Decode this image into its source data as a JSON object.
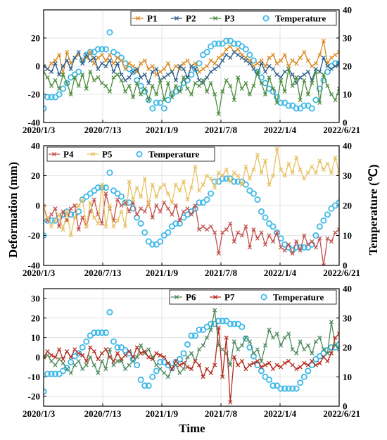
{
  "figure": {
    "ylabel_left": "Deformation (mm)",
    "ylabel_right": "Temperature (℃)",
    "xlabel": "Time"
  },
  "chart_data": [
    {
      "type": "line",
      "x_tick_labels": [
        "2020/1/3",
        "2020/7/13",
        "2021/1/9",
        "2021/7/8",
        "2022/1/4",
        "2022/6/21"
      ],
      "x_range": [
        "2020/1/3",
        "2022/6/21"
      ],
      "ylim": [
        -40,
        40
      ],
      "yticks": [
        -40,
        -20,
        0,
        20
      ],
      "y2lim": [
        0,
        40
      ],
      "y2ticks": [
        0,
        10,
        20,
        30,
        40
      ],
      "grid": true,
      "legend_position": "top-right",
      "legend": [
        "P1",
        "P2",
        "P3",
        "Temperature"
      ],
      "series": [
        {
          "name": "P1",
          "color": "#d9891e",
          "marker": "x",
          "values": [
            0,
            -2,
            2,
            4,
            8,
            -6,
            10,
            2,
            6,
            8,
            4,
            6,
            10,
            2,
            6,
            8,
            4,
            8,
            2,
            6,
            4,
            -2,
            2,
            0,
            -4,
            2,
            4,
            -2,
            0,
            -6,
            -4,
            -2,
            2,
            -4,
            0,
            -2,
            2,
            4,
            0,
            2,
            -4,
            -2,
            0,
            4,
            2,
            6,
            8,
            12,
            14,
            10,
            12,
            8,
            6,
            4,
            0,
            2,
            4,
            0,
            6,
            8,
            2,
            4,
            8,
            0,
            4,
            2,
            6,
            10,
            4,
            0,
            2,
            8,
            18,
            2,
            6,
            8,
            10
          ]
        },
        {
          "name": "P2",
          "color": "#2e5e8a",
          "marker": "x",
          "values": [
            0,
            -2,
            -4,
            2,
            -6,
            0,
            4,
            -2,
            6,
            10,
            2,
            8,
            4,
            6,
            -2,
            2,
            0,
            4,
            -4,
            2,
            -6,
            -10,
            -8,
            -4,
            -2,
            -8,
            -6,
            -12,
            -4,
            -2,
            -10,
            -8,
            -6,
            -4,
            -10,
            0,
            -2,
            -8,
            0,
            -2,
            -10,
            -12,
            -8,
            -4,
            -2,
            0,
            4,
            8,
            6,
            10,
            8,
            6,
            4,
            2,
            -2,
            -6,
            2,
            -4,
            0,
            -2,
            -6,
            -8,
            -4,
            -2,
            -6,
            -12,
            -8,
            -6,
            -4,
            -10,
            -2,
            -4,
            6,
            0,
            -2,
            0,
            2
          ]
        },
        {
          "name": "P3",
          "color": "#4c8c3c",
          "marker": "x",
          "values": [
            -4,
            -8,
            -14,
            -10,
            -16,
            -6,
            -12,
            -20,
            -8,
            -14,
            -6,
            -16,
            -4,
            -10,
            -8,
            -12,
            -14,
            -18,
            -8,
            -6,
            -10,
            -18,
            -14,
            -22,
            -12,
            -20,
            -16,
            -24,
            -14,
            -20,
            -10,
            -24,
            -12,
            -22,
            -14,
            -18,
            -8,
            -16,
            -20,
            -12,
            -14,
            -10,
            -18,
            -12,
            -20,
            -34,
            -18,
            -10,
            -14,
            -24,
            -8,
            -16,
            -12,
            -20,
            -14,
            -4,
            -12,
            -20,
            -8,
            -16,
            -26,
            -10,
            -18,
            -2,
            -14,
            -8,
            -24,
            -10,
            -20,
            -12,
            -4,
            -26,
            -6,
            -14,
            -20,
            -24,
            -16
          ]
        },
        {
          "name": "Temperature",
          "color": "#3db8e8",
          "marker": "o",
          "axis": "right",
          "values": [
            5,
            9,
            9,
            9,
            10,
            12,
            14,
            16,
            17,
            18,
            22,
            24,
            25,
            25,
            26,
            26,
            26,
            32,
            25,
            24,
            23,
            21,
            19,
            18,
            15,
            13,
            11,
            8,
            5,
            7,
            7,
            5,
            8,
            10,
            11,
            12,
            14,
            15,
            17,
            19,
            21,
            24,
            25,
            27,
            28,
            28,
            28,
            29,
            29,
            28,
            28,
            27,
            26,
            24,
            22,
            18,
            16,
            14,
            12,
            11,
            9,
            7,
            7,
            6,
            6,
            5,
            5,
            6,
            6,
            5,
            8,
            12,
            15,
            18,
            20,
            21,
            21
          ]
        }
      ]
    },
    {
      "type": "line",
      "x_tick_labels": [
        "2020/1/3",
        "2020/7/13",
        "2021/1/9",
        "2021/7/8",
        "2022/1/4",
        "2022/6/21"
      ],
      "x_range": [
        "2020/1/3",
        "2022/6/21"
      ],
      "ylim": [
        -40,
        40
      ],
      "yticks": [
        -40,
        -20,
        0,
        20,
        40
      ],
      "y2lim": [
        0,
        40
      ],
      "y2ticks": [
        0,
        10,
        20,
        30,
        40
      ],
      "grid": true,
      "legend_position": "top-left",
      "legend": [
        "P4",
        "P5",
        "Temperature"
      ],
      "series": [
        {
          "name": "P4",
          "color": "#c0504d",
          "marker": "x",
          "values": [
            0,
            -10,
            -6,
            -2,
            -14,
            -4,
            -10,
            -2,
            0,
            -16,
            -8,
            -14,
            -4,
            4,
            -6,
            -12,
            8,
            -2,
            -10,
            4,
            0,
            2,
            -4,
            2,
            -6,
            -2,
            -4,
            2,
            -8,
            0,
            -4,
            2,
            -2,
            -6,
            0,
            -10,
            -4,
            -2,
            -6,
            0,
            -16,
            -14,
            -16,
            -14,
            -18,
            -32,
            -18,
            -16,
            -12,
            -24,
            -18,
            -20,
            -14,
            -28,
            -16,
            -22,
            -18,
            -26,
            -20,
            -24,
            -18,
            -28,
            -30,
            -26,
            -32,
            -24,
            -30,
            -20,
            -26,
            -24,
            -28,
            -22,
            -40,
            -22,
            -24,
            -18,
            -16
          ]
        },
        {
          "name": "P5",
          "color": "#e8c060",
          "marker": "x",
          "values": [
            0,
            -8,
            -14,
            -10,
            -6,
            -16,
            -4,
            -20,
            -8,
            0,
            4,
            -14,
            2,
            -8,
            -12,
            14,
            -14,
            0,
            -14,
            -10,
            -4,
            -14,
            16,
            4,
            12,
            6,
            18,
            0,
            14,
            6,
            12,
            14,
            8,
            2,
            14,
            10,
            16,
            4,
            12,
            26,
            10,
            14,
            20,
            18,
            12,
            22,
            20,
            24,
            16,
            22,
            20,
            14,
            26,
            18,
            24,
            34,
            22,
            30,
            14,
            20,
            38,
            24,
            20,
            28,
            22,
            32,
            24,
            18,
            22,
            26,
            22,
            30,
            24,
            28,
            22,
            32,
            22
          ]
        },
        {
          "name": "Temperature",
          "color": "#3db8e8",
          "marker": "o",
          "axis": "right",
          "values": [
            10,
            15,
            15,
            15,
            16,
            17,
            18,
            17,
            17,
            18,
            22,
            23,
            24,
            25,
            26,
            26,
            26,
            31,
            25,
            24,
            23,
            21,
            21,
            19,
            16,
            14,
            11,
            8,
            7,
            7,
            8,
            10,
            11,
            13,
            14,
            14,
            16,
            17,
            18,
            19,
            21,
            21,
            22,
            24,
            28,
            28,
            29,
            29,
            29,
            28,
            28,
            28,
            27,
            25,
            24,
            22,
            18,
            16,
            14,
            13,
            11,
            9,
            7,
            6,
            5,
            6,
            6,
            6,
            6,
            7,
            10,
            13,
            15,
            17,
            19,
            20,
            21
          ]
        }
      ]
    },
    {
      "type": "line",
      "x_tick_labels": [
        "2020/1/3",
        "2020/7/13",
        "2021/1/9",
        "2021/7/8",
        "2022/1/4",
        "2022/6/21"
      ],
      "x_range": [
        "2020/1/3",
        "2022/6/21"
      ],
      "ylim": [
        -25,
        35
      ],
      "yticks": [
        -20,
        -10,
        0,
        10,
        20,
        30
      ],
      "y2lim": [
        0,
        40
      ],
      "y2ticks": [
        0,
        10,
        20,
        30,
        40
      ],
      "grid": true,
      "legend_position": "top-right",
      "legend": [
        "P6",
        "P7",
        "Temperature"
      ],
      "series": [
        {
          "name": "P6",
          "color": "#4e8a5e",
          "marker": "x",
          "values": [
            0,
            1,
            -2,
            -4,
            -1,
            -3,
            -6,
            -8,
            -4,
            -2,
            -6,
            -4,
            0,
            -4,
            -8,
            -2,
            -6,
            4,
            -4,
            -2,
            -2,
            -6,
            -4,
            -2,
            0,
            6,
            2,
            4,
            0,
            -4,
            -6,
            -8,
            -10,
            -6,
            -4,
            -8,
            -6,
            0,
            2,
            -2,
            4,
            6,
            10,
            14,
            24,
            6,
            4,
            2,
            -4,
            8,
            4,
            6,
            10,
            8,
            2,
            4,
            -2,
            6,
            14,
            10,
            12,
            6,
            10,
            12,
            4,
            2,
            8,
            4,
            6,
            2,
            8,
            10,
            4,
            2,
            18,
            6,
            4
          ]
        },
        {
          "name": "P7",
          "color": "#b22d1e",
          "marker": "x",
          "values": [
            0,
            3,
            1,
            0,
            4,
            -1,
            3,
            0,
            4,
            2,
            1,
            -2,
            5,
            3,
            -1,
            2,
            4,
            0,
            -2,
            2,
            -1,
            1,
            3,
            0,
            5,
            2,
            3,
            0,
            -1,
            2,
            1,
            0,
            -3,
            -6,
            -2,
            -4,
            -3,
            -5,
            -6,
            -2,
            -4,
            -10,
            -6,
            -8,
            -4,
            15,
            -10,
            10,
            -23,
            0,
            -4,
            -2,
            -6,
            -4,
            -3,
            -2,
            -5,
            -4,
            -3,
            -6,
            -4,
            -5,
            -3,
            -2,
            -4,
            -6,
            -5,
            -3,
            -4,
            -2,
            -4,
            -3,
            0,
            -2,
            2,
            10,
            12
          ]
        },
        {
          "name": "Temperature",
          "color": "#3db8e8",
          "marker": "o",
          "axis": "right",
          "values": [
            5,
            11,
            11,
            11,
            11,
            12,
            13,
            15,
            17,
            18,
            20,
            22,
            24,
            25,
            25,
            25,
            25,
            32,
            22,
            20,
            20,
            19,
            18,
            16,
            14,
            9,
            7,
            7,
            10,
            12,
            15,
            15,
            14,
            13,
            15,
            16,
            18,
            21,
            24,
            24,
            26,
            26,
            27,
            28,
            28,
            29,
            29,
            29,
            28,
            28,
            28,
            27,
            23,
            20,
            17,
            14,
            12,
            10,
            9,
            7,
            7,
            6,
            6,
            6,
            6,
            6,
            8,
            10,
            12,
            14,
            16,
            17,
            18,
            19,
            20,
            20,
            21
          ]
        }
      ]
    }
  ]
}
